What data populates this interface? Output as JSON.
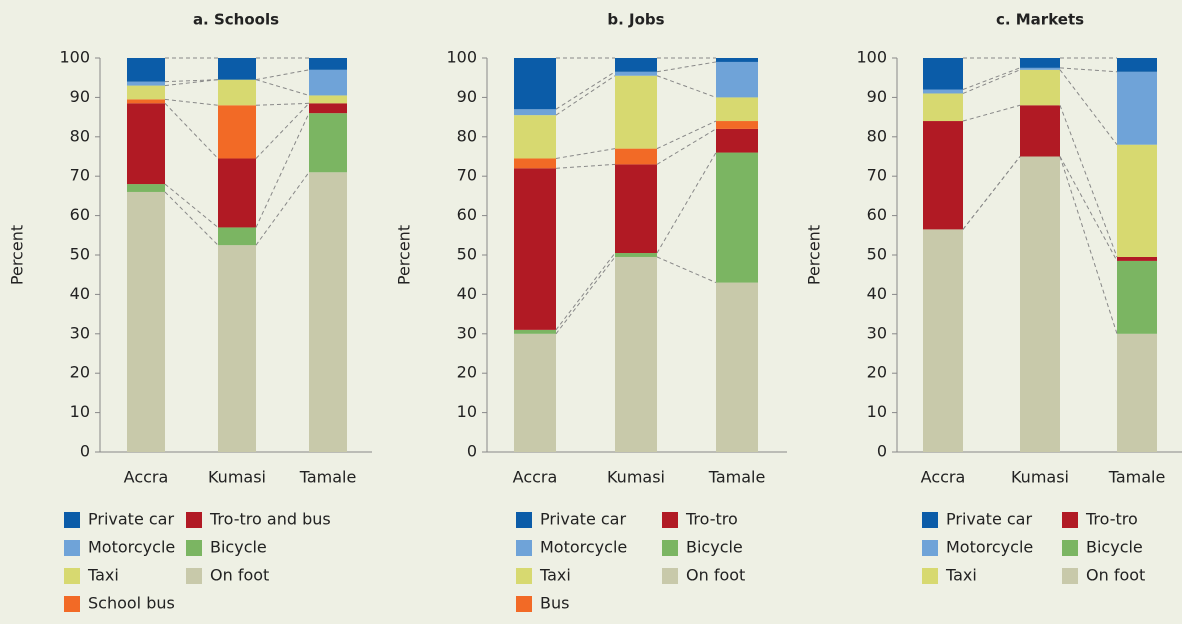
{
  "chart_data": [
    {
      "type": "stacked_bar",
      "title": "a. Schools",
      "ylabel": "Percent",
      "categories": [
        "Accra",
        "Kumasi",
        "Tamale"
      ],
      "ylim": [
        0,
        100
      ],
      "yticks": [
        0,
        10,
        20,
        30,
        40,
        50,
        60,
        70,
        80,
        90,
        100
      ],
      "series": [
        {
          "name": "Private car",
          "color": "#0b5ca8",
          "values": [
            6,
            5.5,
            3
          ]
        },
        {
          "name": "Tro-tro and bus",
          "color": "#b11a24",
          "values": [
            20.5,
            17.5,
            2.5
          ]
        },
        {
          "name": "Motorcycle",
          "color": "#6fa3d8",
          "values": [
            1,
            0,
            6.5
          ]
        },
        {
          "name": "Bicycle",
          "color": "#7bb562",
          "values": [
            2,
            4.5,
            15
          ]
        },
        {
          "name": "Taxi",
          "color": "#d7d970",
          "values": [
            3.5,
            6.5,
            2
          ]
        },
        {
          "name": "On foot",
          "color": "#c8c9aa",
          "values": [
            66,
            52.5,
            71
          ]
        },
        {
          "name": "School bus",
          "color": "#f26a26",
          "values": [
            1,
            13.5,
            0
          ]
        }
      ]
    },
    {
      "type": "stacked_bar",
      "title": "b. Jobs",
      "ylabel": "Percent",
      "categories": [
        "Accra",
        "Kumasi",
        "Tamale"
      ],
      "ylim": [
        0,
        100
      ],
      "yticks": [
        0,
        10,
        20,
        30,
        40,
        50,
        60,
        70,
        80,
        90,
        100
      ],
      "series": [
        {
          "name": "Private car",
          "color": "#0b5ca8",
          "values": [
            13,
            3.5,
            1
          ]
        },
        {
          "name": "Tro-tro",
          "color": "#b11a24",
          "values": [
            41,
            22.5,
            6
          ]
        },
        {
          "name": "Motorcycle",
          "color": "#6fa3d8",
          "values": [
            1.5,
            1,
            9
          ]
        },
        {
          "name": "Bicycle",
          "color": "#7bb562",
          "values": [
            1,
            1,
            33
          ]
        },
        {
          "name": "Taxi",
          "color": "#d7d970",
          "values": [
            11,
            18.5,
            6
          ]
        },
        {
          "name": "On foot",
          "color": "#c8c9aa",
          "values": [
            30,
            49.5,
            43
          ]
        },
        {
          "name": "Bus",
          "color": "#f26a26",
          "values": [
            2.5,
            4,
            2
          ]
        }
      ]
    },
    {
      "type": "stacked_bar",
      "title": "c. Markets",
      "ylabel": "Percent",
      "categories": [
        "Accra",
        "Kumasi",
        "Tamale"
      ],
      "ylim": [
        0,
        100
      ],
      "yticks": [
        0,
        10,
        20,
        30,
        40,
        50,
        60,
        70,
        80,
        90,
        100
      ],
      "series": [
        {
          "name": "Private car",
          "color": "#0b5ca8",
          "values": [
            8,
            2.5,
            3.5
          ]
        },
        {
          "name": "Tro-tro",
          "color": "#b11a24",
          "values": [
            27.5,
            13,
            1
          ]
        },
        {
          "name": "Motorcycle",
          "color": "#6fa3d8",
          "values": [
            1,
            0.5,
            18.5
          ]
        },
        {
          "name": "Bicycle",
          "color": "#7bb562",
          "values": [
            0,
            0,
            18.5
          ]
        },
        {
          "name": "Taxi",
          "color": "#d7d970",
          "values": [
            7,
            9,
            28.5
          ]
        },
        {
          "name": "On foot",
          "color": "#c8c9aa",
          "values": [
            56.5,
            75,
            30
          ]
        }
      ]
    }
  ]
}
